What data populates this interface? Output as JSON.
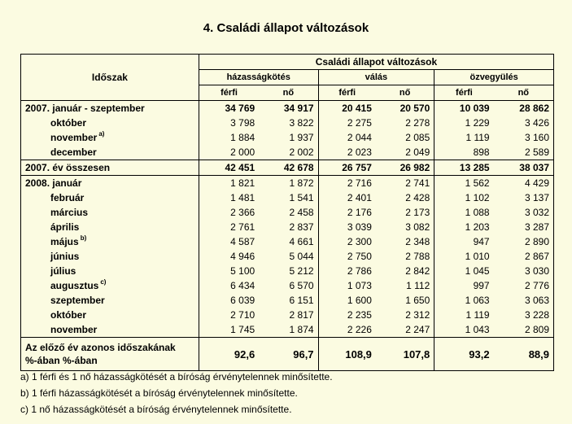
{
  "title": "4. Családi állapot változások",
  "header": {
    "period": "Időszak",
    "main": "Családi állapot változások",
    "groups": [
      "házasságkötés",
      "válás",
      "özvegyülés"
    ],
    "male": "férfi",
    "female": "nő"
  },
  "rows": [
    {
      "label": "2007. január - szeptember",
      "sup": "",
      "indent": false,
      "bold": true,
      "vals": [
        "34 769",
        "34 917",
        "20 415",
        "20 570",
        "10 039",
        "28 862"
      ]
    },
    {
      "label": "október",
      "sup": "",
      "indent": true,
      "bold": false,
      "vals": [
        "3 798",
        "3 822",
        "2 275",
        "2 278",
        "1 229",
        "3 426"
      ]
    },
    {
      "label": "november",
      "sup": "a)",
      "indent": true,
      "bold": false,
      "vals": [
        "1 884",
        "1 937",
        "2 044",
        "2 085",
        "1 119",
        "3 160"
      ]
    },
    {
      "label": "december",
      "sup": "",
      "indent": true,
      "bold": false,
      "vals": [
        "2 000",
        "2 002",
        "2 023",
        "2 049",
        "898",
        "2 589"
      ]
    },
    {
      "label": "2007. év összesen",
      "sup": "",
      "indent": false,
      "bold": true,
      "vals": [
        "42 451",
        "42 678",
        "26 757",
        "26 982",
        "13 285",
        "38 037"
      ]
    },
    {
      "label": "2008. január",
      "sup": "",
      "indent": false,
      "bold": false,
      "vals": [
        "1 821",
        "1 872",
        "2 716",
        "2 741",
        "1 562",
        "4 429"
      ]
    },
    {
      "label": "február",
      "sup": "",
      "indent": true,
      "bold": false,
      "vals": [
        "1 481",
        "1 541",
        "2 401",
        "2 428",
        "1 102",
        "3 137"
      ]
    },
    {
      "label": "március",
      "sup": "",
      "indent": true,
      "bold": false,
      "vals": [
        "2 366",
        "2 458",
        "2 176",
        "2 173",
        "1 088",
        "3 032"
      ]
    },
    {
      "label": "április",
      "sup": "",
      "indent": true,
      "bold": false,
      "vals": [
        "2 761",
        "2 837",
        "3 039",
        "3 082",
        "1 203",
        "3 287"
      ]
    },
    {
      "label": "május",
      "sup": "b)",
      "indent": true,
      "bold": false,
      "vals": [
        "4 587",
        "4 661",
        "2 300",
        "2 348",
        "947",
        "2 890"
      ]
    },
    {
      "label": "június",
      "sup": "",
      "indent": true,
      "bold": false,
      "vals": [
        "4 946",
        "5 044",
        "2 750",
        "2 788",
        "1 010",
        "2 867"
      ]
    },
    {
      "label": "július",
      "sup": "",
      "indent": true,
      "bold": false,
      "vals": [
        "5 100",
        "5 212",
        "2 786",
        "2 842",
        "1 045",
        "3 030"
      ]
    },
    {
      "label": "augusztus",
      "sup": "c)",
      "indent": true,
      "bold": false,
      "vals": [
        "6 434",
        "6 570",
        "1 073",
        "1 112",
        "997",
        "2 776"
      ]
    },
    {
      "label": "szeptember",
      "sup": "",
      "indent": true,
      "bold": false,
      "vals": [
        "6 039",
        "6 151",
        "1 600",
        "1 650",
        "1 063",
        "3 063"
      ]
    },
    {
      "label": "október",
      "sup": "",
      "indent": true,
      "bold": false,
      "vals": [
        "2 710",
        "2 817",
        "2 235",
        "2 312",
        "1 119",
        "3 228"
      ]
    },
    {
      "label": "november",
      "sup": "",
      "indent": true,
      "bold": false,
      "vals": [
        "1 745",
        "1 874",
        "2 226",
        "2 247",
        "1 043",
        "2 809"
      ]
    }
  ],
  "comparison": {
    "label_line1": "Az előző év azonos időszakának",
    "label_line2": "%-ában %-ában",
    "vals": [
      "92,6",
      "96,7",
      "108,9",
      "107,8",
      "93,2",
      "88,9"
    ]
  },
  "notes": [
    "a) 1 férfi és 1 nő házasságkötését a bíróság érvénytelennek minősítette.",
    "b) 1 férfi házasságkötését a bíróság érvénytelennek minősítette.",
    "c) 1 nő házasságkötését a bíróság érvénytelennek minősítette."
  ]
}
